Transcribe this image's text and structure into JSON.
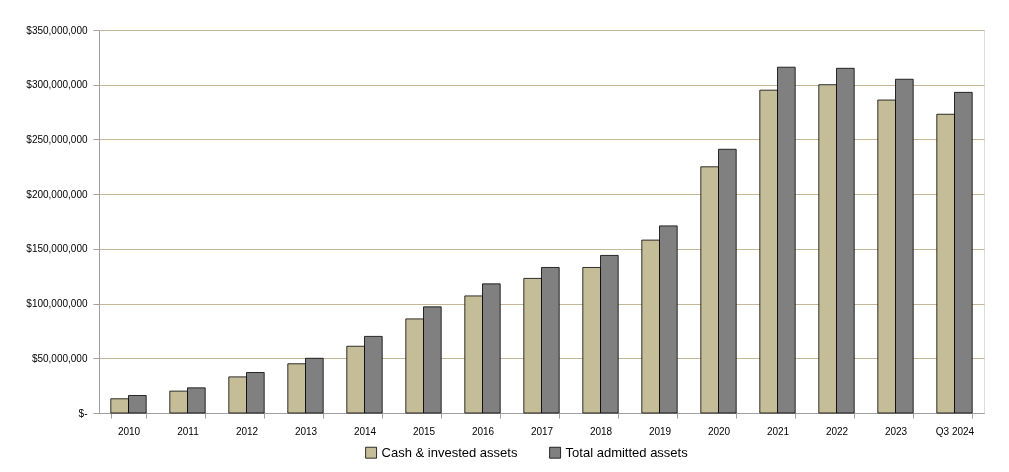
{
  "chart_data": {
    "type": "bar",
    "categories": [
      "2010",
      "2011",
      "2012",
      "2013",
      "2014",
      "2015",
      "2016",
      "2017",
      "2018",
      "2019",
      "2020",
      "2021",
      "2022",
      "2023",
      "Q3 2024"
    ],
    "series": [
      {
        "name": "Cash & invested assets",
        "color": "#c4bd97",
        "values": [
          13000000,
          20000000,
          33000000,
          45000000,
          61000000,
          86000000,
          107000000,
          123000000,
          133000000,
          158000000,
          225000000,
          295000000,
          300000000,
          286000000,
          273000000
        ]
      },
      {
        "name": "Total admitted assets",
        "color": "#808080",
        "values": [
          16000000,
          23000000,
          37000000,
          50000000,
          70000000,
          97000000,
          118000000,
          133000000,
          144000000,
          171000000,
          241000000,
          316000000,
          315000000,
          305000000,
          293000000
        ]
      }
    ],
    "ylim": [
      0,
      350000000
    ],
    "yticks": [
      {
        "value": 0,
        "label": "$-"
      },
      {
        "value": 50000000,
        "label": "$50,000,000"
      },
      {
        "value": 100000000,
        "label": "$100,000,000"
      },
      {
        "value": 150000000,
        "label": "$150,000,000"
      },
      {
        "value": 200000000,
        "label": "$200,000,000"
      },
      {
        "value": 250000000,
        "label": "$250,000,000"
      },
      {
        "value": 300000000,
        "label": "$300,000,000"
      },
      {
        "value": 350000000,
        "label": "$350,000,000"
      }
    ],
    "grid": "y",
    "legend": "bottom"
  }
}
